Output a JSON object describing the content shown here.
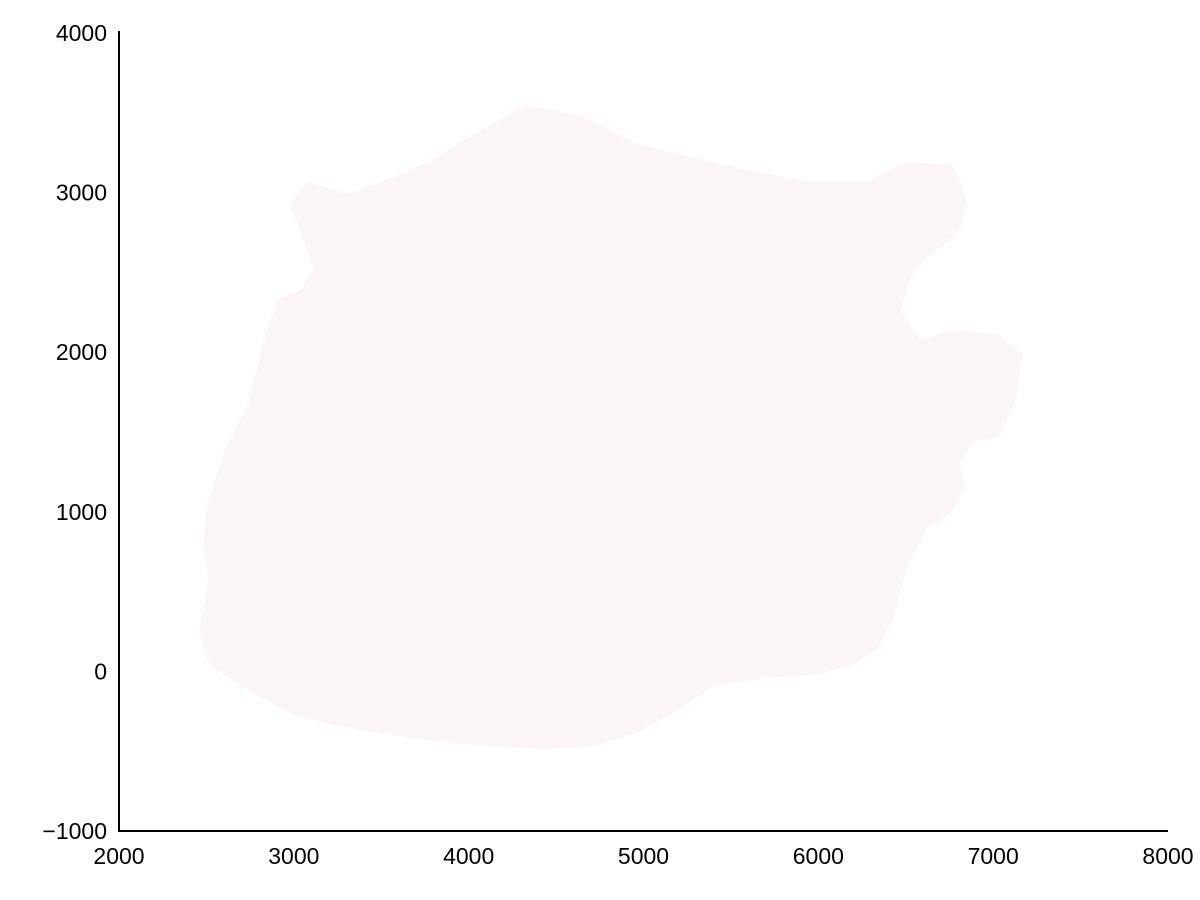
{
  "chart_data": {
    "type": "area",
    "title": "",
    "xlabel": "",
    "ylabel": "",
    "xlim": [
      2000,
      8000
    ],
    "ylim": [
      -1000,
      4000
    ],
    "x_ticks": [
      "2000",
      "3000",
      "4000",
      "5000",
      "6000",
      "7000",
      "8000"
    ],
    "y_ticks": [
      "4000",
      "3000",
      "2000",
      "1000",
      "0",
      "−1000"
    ],
    "grid": false,
    "legend": "none",
    "region_color": "#fcf5f5",
    "region_outline": [
      [
        2470,
        270
      ],
      [
        2510,
        70
      ],
      [
        2560,
        20
      ],
      [
        2680,
        -60
      ],
      [
        2840,
        -170
      ],
      [
        3000,
        -260
      ],
      [
        3200,
        -320
      ],
      [
        3450,
        -370
      ],
      [
        3700,
        -410
      ],
      [
        3900,
        -440
      ],
      [
        4150,
        -460
      ],
      [
        4450,
        -480
      ],
      [
        4700,
        -460
      ],
      [
        4950,
        -380
      ],
      [
        5200,
        -230
      ],
      [
        5400,
        -80
      ],
      [
        5700,
        -30
      ],
      [
        6000,
        -10
      ],
      [
        6200,
        50
      ],
      [
        6330,
        150
      ],
      [
        6430,
        350
      ],
      [
        6460,
        500
      ],
      [
        6500,
        650
      ],
      [
        6610,
        900
      ],
      [
        6750,
        1000
      ],
      [
        6830,
        1150
      ],
      [
        6800,
        1300
      ],
      [
        6880,
        1450
      ],
      [
        7030,
        1480
      ],
      [
        7120,
        1700
      ],
      [
        7160,
        1980
      ],
      [
        7030,
        2100
      ],
      [
        6800,
        2130
      ],
      [
        6580,
        2070
      ],
      [
        6460,
        2250
      ],
      [
        6510,
        2450
      ],
      [
        6600,
        2580
      ],
      [
        6750,
        2720
      ],
      [
        6810,
        2800
      ],
      [
        6840,
        2950
      ],
      [
        6760,
        3170
      ],
      [
        6500,
        3180
      ],
      [
        6280,
        3060
      ],
      [
        5950,
        3060
      ],
      [
        5600,
        3130
      ],
      [
        5250,
        3220
      ],
      [
        4950,
        3300
      ],
      [
        4650,
        3470
      ],
      [
        4330,
        3540
      ],
      [
        4100,
        3400
      ],
      [
        3800,
        3200
      ],
      [
        3600,
        3100
      ],
      [
        3300,
        2980
      ],
      [
        3080,
        3060
      ],
      [
        2990,
        2920
      ],
      [
        3060,
        2720
      ],
      [
        3120,
        2530
      ],
      [
        3050,
        2380
      ],
      [
        2920,
        2330
      ],
      [
        2850,
        2130
      ],
      [
        2800,
        1900
      ],
      [
        2740,
        1650
      ],
      [
        2640,
        1450
      ],
      [
        2560,
        1200
      ],
      [
        2510,
        1000
      ],
      [
        2490,
        800
      ],
      [
        2520,
        600
      ],
      [
        2500,
        430
      ]
    ]
  }
}
